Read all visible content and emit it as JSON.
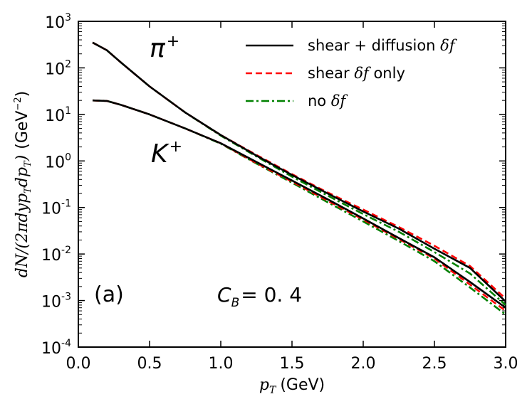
{
  "chart_data": {
    "type": "line",
    "xlabel_var": "p",
    "xlabel_sub": "T",
    "xlabel_unit": "(GeV)",
    "ylabel_math": "dN/(2πdyp",
    "ylabel_math_sub": "T",
    "ylabel_math_2": "dp",
    "ylabel_math_sub_2": "T",
    "ylabel_math_end": ")",
    "ylabel_unit_open": "(GeV",
    "ylabel_unit_exp": "−2",
    "ylabel_unit_close": ")",
    "xlim": [
      0.0,
      3.0
    ],
    "ylim": [
      0.0001,
      1000
    ],
    "yscale": "log",
    "xticks": [
      "0.0",
      "0.5",
      "1.0",
      "1.5",
      "2.0",
      "2.5",
      "3.0"
    ],
    "xtick_values": [
      0.0,
      0.5,
      1.0,
      1.5,
      2.0,
      2.5,
      3.0
    ],
    "yticks": [
      {
        "base": "10",
        "exp": "-4"
      },
      {
        "base": "10",
        "exp": "-3"
      },
      {
        "base": "10",
        "exp": "-2"
      },
      {
        "base": "10",
        "exp": "-1"
      },
      {
        "base": "10",
        "exp": "0"
      },
      {
        "base": "10",
        "exp": "1"
      },
      {
        "base": "10",
        "exp": "2"
      },
      {
        "base": "10",
        "exp": "3"
      }
    ],
    "legend_position": "top-right",
    "legend": [
      {
        "label": "shear + diffusion ",
        "math": "δf",
        "suffix": "",
        "color": "#000000",
        "dash": "solid"
      },
      {
        "label": "shear ",
        "math": "δf",
        "suffix": " only",
        "color": "#ff0000",
        "dash": "dashed"
      },
      {
        "label": "no ",
        "math": "δf",
        "suffix": "",
        "color": "#008000",
        "dash": "dashdot"
      }
    ],
    "annotations": {
      "pion_label": "π",
      "pion_sup": "+",
      "kaon_label": "K",
      "kaon_sup": "+",
      "panel_label": "(a)",
      "cb_var": "C",
      "cb_sub": "B",
      "cb_value": "= 0. 4"
    },
    "series": [
      {
        "particle": "pi+",
        "delta_f": "shear + diffusion",
        "color": "#000000",
        "dash": "solid",
        "x": [
          0.1,
          0.2,
          0.3,
          0.5,
          0.75,
          1.0,
          1.25,
          1.5,
          1.75,
          2.0,
          2.25,
          2.5,
          2.75,
          3.0
        ],
        "y": [
          350,
          240,
          130,
          40,
          11,
          3.6,
          1.3,
          0.5,
          0.2,
          0.082,
          0.035,
          0.013,
          0.005,
          0.00095
        ]
      },
      {
        "particle": "pi+",
        "delta_f": "shear only",
        "color": "#ff0000",
        "dash": "dashed",
        "x": [
          0.1,
          0.2,
          0.3,
          0.5,
          0.75,
          1.0,
          1.25,
          1.5,
          1.75,
          2.0,
          2.25,
          2.5,
          2.75,
          3.0
        ],
        "y": [
          350,
          240,
          130,
          40,
          11,
          3.6,
          1.35,
          0.52,
          0.21,
          0.09,
          0.038,
          0.015,
          0.0055,
          0.0011
        ]
      },
      {
        "particle": "pi+",
        "delta_f": "no",
        "color": "#008000",
        "dash": "dashdot",
        "x": [
          0.1,
          0.2,
          0.3,
          0.5,
          0.75,
          1.0,
          1.25,
          1.5,
          1.75,
          2.0,
          2.25,
          2.5,
          2.75,
          3.0
        ],
        "y": [
          350,
          240,
          130,
          40,
          11,
          3.5,
          1.25,
          0.46,
          0.18,
          0.072,
          0.03,
          0.011,
          0.0038,
          0.0008
        ]
      },
      {
        "particle": "K+",
        "delta_f": "shear + diffusion",
        "color": "#000000",
        "dash": "solid",
        "x": [
          0.1,
          0.2,
          0.3,
          0.5,
          0.75,
          1.0,
          1.25,
          1.5,
          1.75,
          2.0,
          2.25,
          2.5,
          2.75,
          3.0
        ],
        "y": [
          20,
          19.5,
          16,
          10,
          5,
          2.4,
          0.95,
          0.38,
          0.15,
          0.058,
          0.022,
          0.0085,
          0.0025,
          0.0007
        ]
      },
      {
        "particle": "K+",
        "delta_f": "shear only",
        "color": "#ff0000",
        "dash": "dashed",
        "x": [
          0.1,
          0.2,
          0.3,
          0.5,
          0.75,
          1.0,
          1.25,
          1.5,
          1.75,
          2.0,
          2.25,
          2.5,
          2.75,
          3.0
        ],
        "y": [
          20,
          19.5,
          16,
          10,
          5,
          2.4,
          0.9,
          0.36,
          0.14,
          0.055,
          0.021,
          0.008,
          0.0022,
          0.0006
        ]
      },
      {
        "particle": "K+",
        "delta_f": "no",
        "color": "#008000",
        "dash": "dashdot",
        "x": [
          0.1,
          0.2,
          0.3,
          0.5,
          0.75,
          1.0,
          1.25,
          1.5,
          1.75,
          2.0,
          2.25,
          2.5,
          2.75,
          3.0
        ],
        "y": [
          20,
          19.5,
          16,
          10,
          5,
          2.35,
          0.88,
          0.34,
          0.13,
          0.05,
          0.019,
          0.007,
          0.0019,
          0.0005
        ]
      }
    ]
  }
}
